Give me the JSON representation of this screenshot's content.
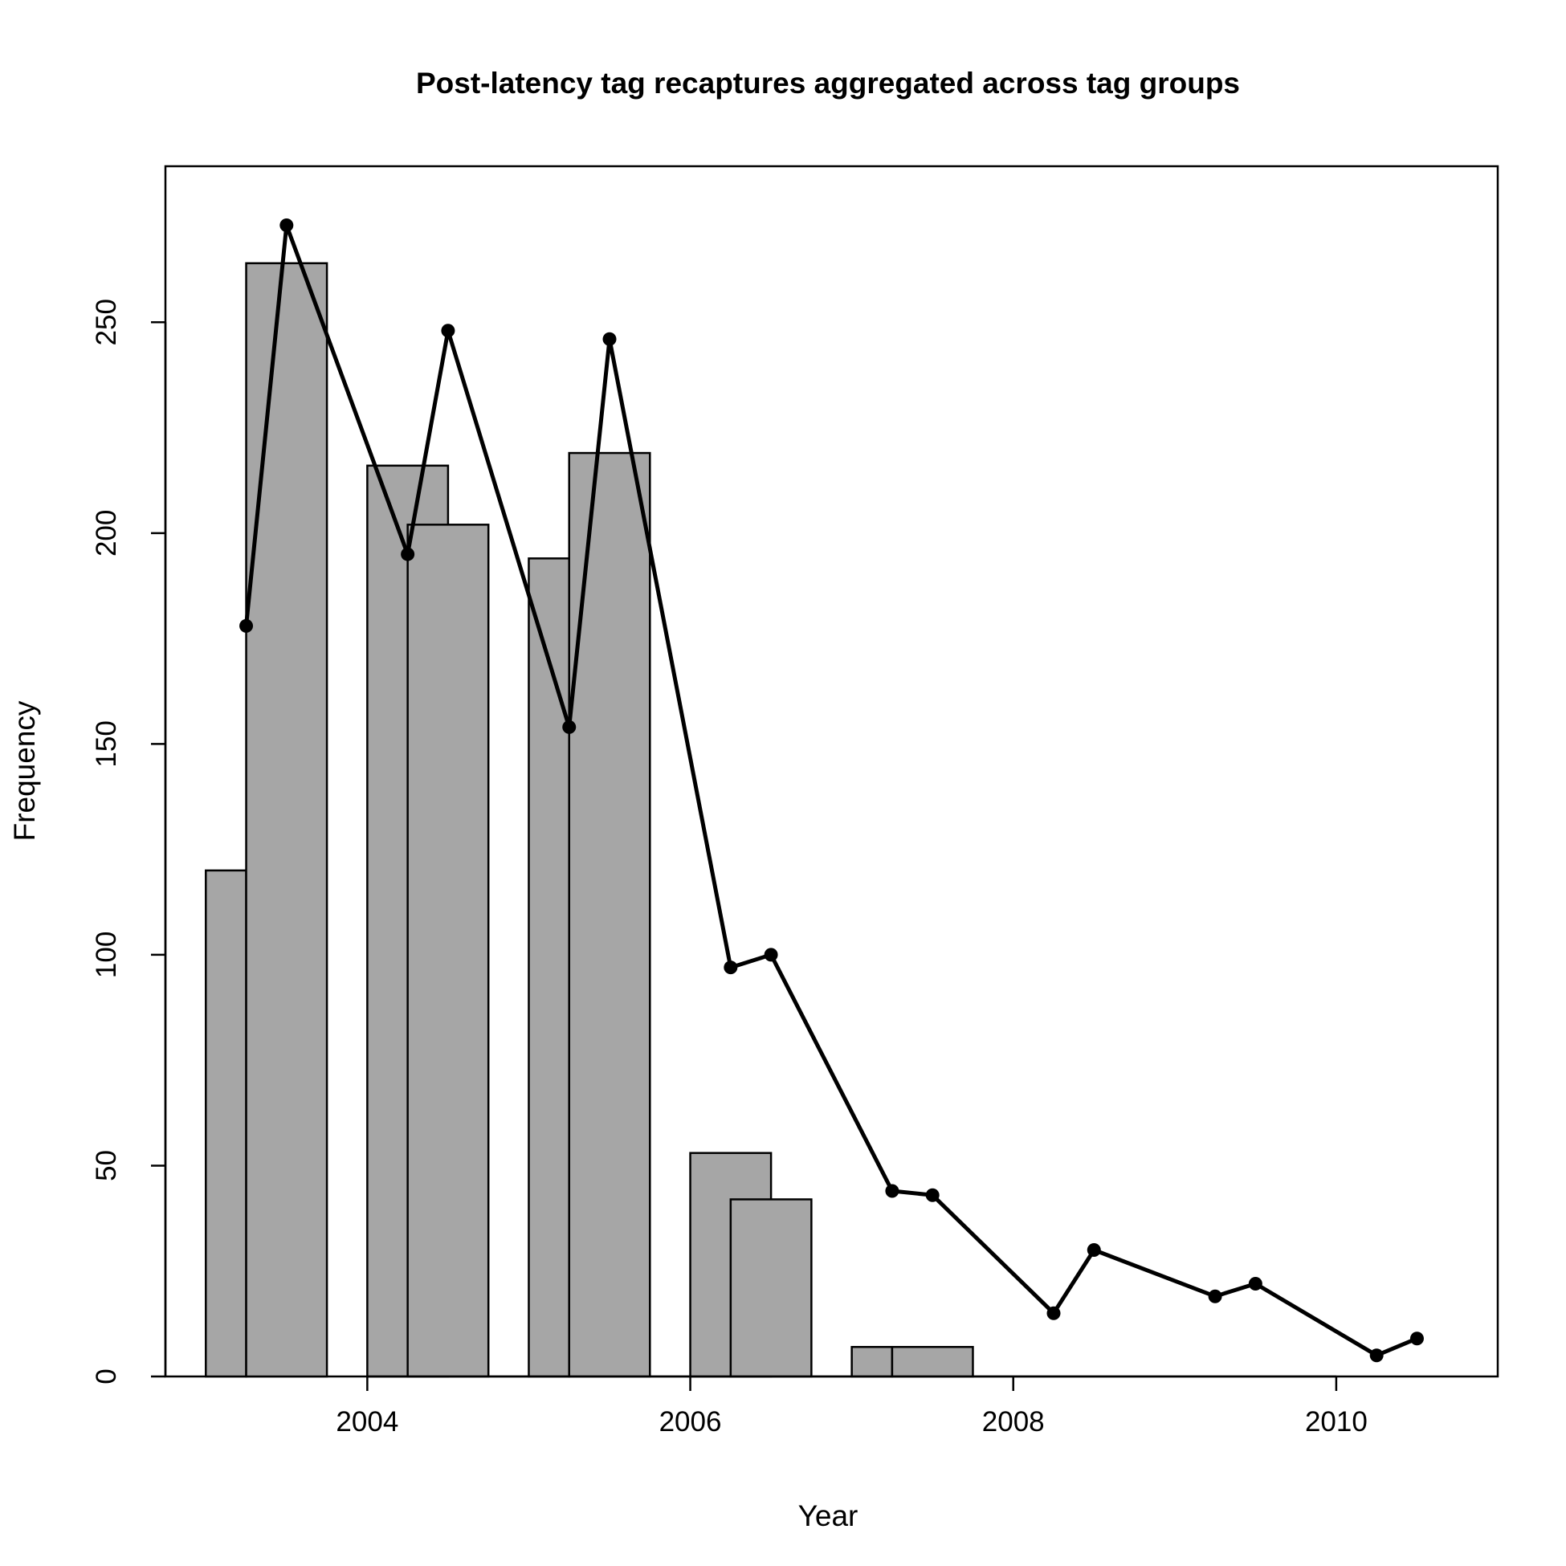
{
  "chart_data": {
    "type": "bar",
    "title": "Post-latency tag recaptures aggregated across tag groups",
    "xlabel": "Year",
    "ylabel": "Frequency",
    "xlim": [
      2002.75,
      2011.0
    ],
    "ylim": [
      0,
      287
    ],
    "xticks": [
      2004,
      2006,
      2008,
      2010
    ],
    "yticks": [
      0,
      50,
      100,
      150,
      200,
      250
    ],
    "colors": {
      "bar_fill": "#a6a6a6",
      "line": "#000000",
      "axis": "#000000"
    },
    "bars": [
      {
        "x0": 2003.0,
        "x1": 2003.25,
        "value": 120
      },
      {
        "x0": 2003.25,
        "x1": 2003.75,
        "value": 264
      },
      {
        "x0": 2004.0,
        "x1": 2004.5,
        "value": 216
      },
      {
        "x0": 2004.25,
        "x1": 2004.75,
        "value": 202
      },
      {
        "x0": 2005.0,
        "x1": 2005.25,
        "value": 194
      },
      {
        "x0": 2005.25,
        "x1": 2005.75,
        "value": 219
      },
      {
        "x0": 2006.0,
        "x1": 2006.5,
        "value": 53
      },
      {
        "x0": 2006.25,
        "x1": 2006.75,
        "value": 42
      },
      {
        "x0": 2007.0,
        "x1": 2007.25,
        "value": 7
      },
      {
        "x0": 2007.25,
        "x1": 2007.75,
        "value": 7
      },
      {
        "x0": 2008.0,
        "x1": 2008.75,
        "value": 0
      },
      {
        "x0": 2009.0,
        "x1": 2009.75,
        "value": 0
      },
      {
        "x0": 2010.0,
        "x1": 2010.75,
        "value": 0
      }
    ],
    "series": [
      {
        "type": "line",
        "x": [
          2003.25,
          2003.5,
          2004.25,
          2004.5,
          2005.25,
          2005.5,
          2006.25,
          2006.5,
          2007.25,
          2007.5,
          2008.25,
          2008.5,
          2009.25,
          2009.5,
          2010.25,
          2010.5
        ],
        "y": [
          178,
          273,
          195,
          248,
          154,
          246,
          97,
          100,
          44,
          43,
          15,
          30,
          19,
          22,
          5,
          9
        ]
      }
    ]
  }
}
